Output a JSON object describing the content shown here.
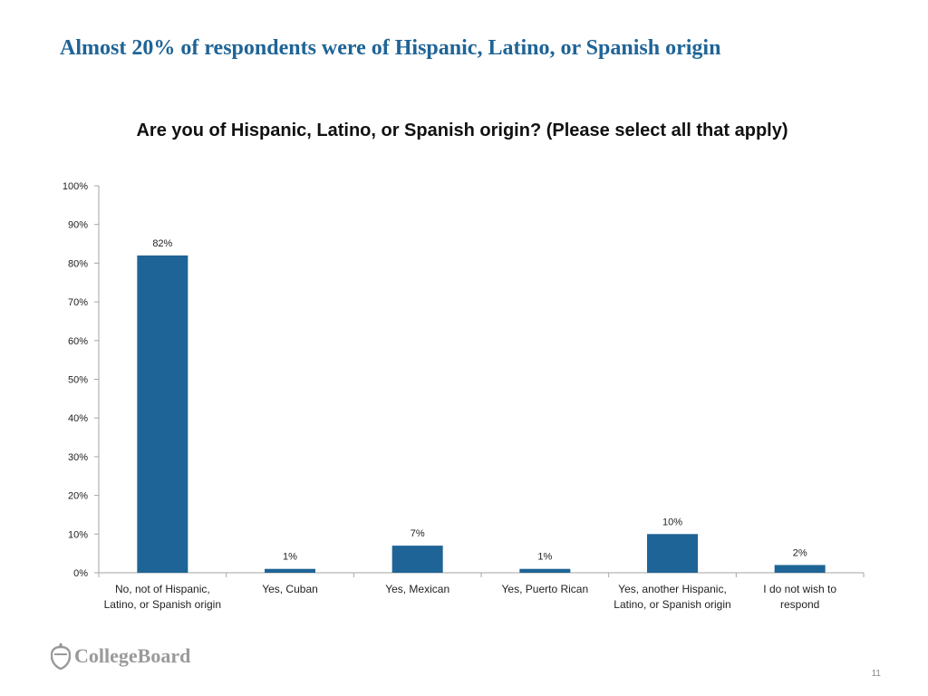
{
  "slide": {
    "title": "Almost 20% of respondents were of Hispanic, Latino, or Spanish origin",
    "page_number": "11",
    "logo_text": "CollegeBoard"
  },
  "colors": {
    "title": "#1f6496",
    "bar": "#1f6496",
    "axis": "#a6a6a6"
  },
  "chart_data": {
    "type": "bar",
    "title": "Are you of Hispanic, Latino, or Spanish origin? (Please select all that apply)",
    "categories": [
      [
        "No, not of Hispanic,",
        "Latino, or Spanish origin"
      ],
      [
        "Yes, Cuban"
      ],
      [
        "Yes, Mexican"
      ],
      [
        "Yes, Puerto Rican"
      ],
      [
        "Yes, another Hispanic,",
        "Latino, or Spanish origin"
      ],
      [
        "I do not wish to",
        "respond"
      ]
    ],
    "values": [
      82,
      1,
      7,
      1,
      10,
      2
    ],
    "data_labels": [
      "82%",
      "1%",
      "7%",
      "1%",
      "10%",
      "2%"
    ],
    "ylim": [
      0,
      100
    ],
    "yticks": [
      0,
      10,
      20,
      30,
      40,
      50,
      60,
      70,
      80,
      90,
      100
    ],
    "ytick_labels": [
      "0%",
      "10%",
      "20%",
      "30%",
      "40%",
      "50%",
      "60%",
      "70%",
      "80%",
      "90%",
      "100%"
    ],
    "xlabel": "",
    "ylabel": "",
    "grid": false
  }
}
